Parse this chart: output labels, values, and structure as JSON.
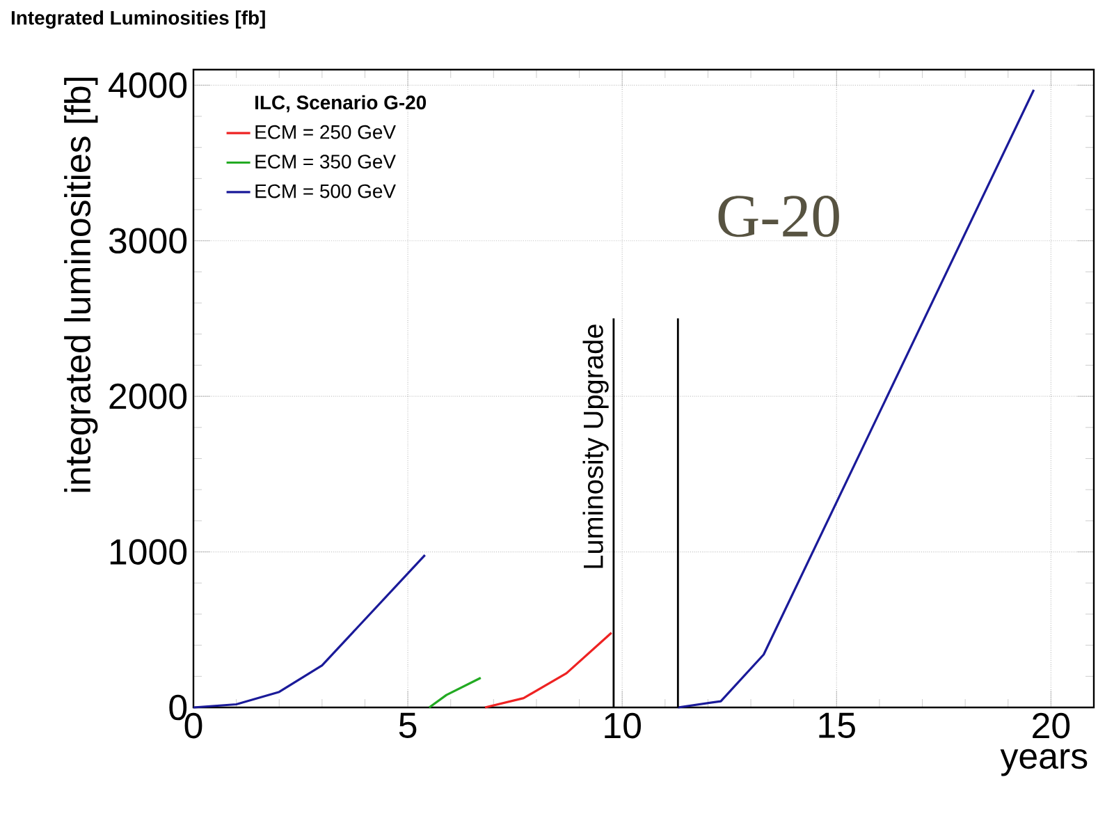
{
  "chart_data": {
    "type": "line",
    "title": "Integrated Luminosities  [fb]",
    "xlabel": "years",
    "ylabel": "integrated luminosities  [fb]",
    "legend_title": "ILC, Scenario G-20",
    "annotations": [
      "G-20"
    ],
    "series": [
      {
        "name": "ECM = 250 GeV",
        "color": "#ee2222",
        "x": [
          6.8,
          7.7,
          8.7,
          9.75
        ],
        "values": [
          0,
          60,
          220,
          480
        ]
      },
      {
        "name": "ECM = 350 GeV",
        "color": "#22aa22",
        "x": [
          5.5,
          5.9,
          6.7
        ],
        "values": [
          0,
          80,
          190
        ]
      },
      {
        "name": "ECM = 500 GeV",
        "color": "#1a1a99",
        "x": [
          0,
          1,
          2,
          3,
          5.4,
          null,
          11.3,
          12.3,
          13.3,
          19.6
        ],
        "values": [
          0,
          20,
          100,
          270,
          980,
          null,
          0,
          40,
          340,
          3970
        ]
      }
    ],
    "ref_lines": [
      {
        "axis": "x",
        "value": 9.8,
        "label": "Luminosity Upgrade",
        "color": "#000000"
      },
      {
        "axis": "x",
        "value": 11.3,
        "color": "#000000"
      }
    ],
    "xlim": [
      0,
      21
    ],
    "ylim": [
      0,
      4100
    ],
    "xticks": [
      0,
      5,
      10,
      15,
      20
    ],
    "yticks": [
      0,
      1000,
      2000,
      3000,
      4000
    ],
    "grid": true,
    "legend": "top left",
    "marker": "none",
    "line_style": "solid"
  }
}
